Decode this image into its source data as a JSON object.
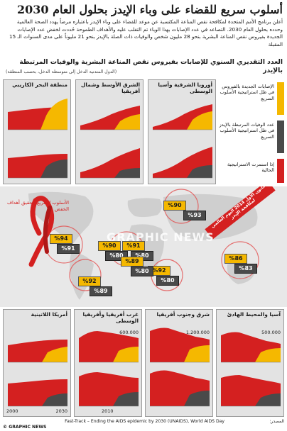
{
  "title": "أسلوب سريع للقضاء على وباء الإيدز بحلول العام 2030",
  "intro": "أعلن برنامج الأمم المتحدة لمكافحة نقص المناعة المكتسبة عن موعد للقضاء على وباء الإيدز باعتباره مرضاً يهدد الصحة العالمية وحدده بحلول العام 2030. التصاعد في عدد الإصابات بهذا الوباء تم التغلب عليه والأهداف الطموحة حُددت لخفض عدد الإصابات الجديدة بفيروس نقص المناعة البشرية بنحو 28 مليون شخص والوفيات ذات الصلة بالإيدز بنحو 21 مليوناً على مدى السنوات الـ 15 المقبلة",
  "subhead": "العدد التقديري السنوي للإصابات بفيروس نقص المناعة البشرية والوفيات المرتبطة بالإيدز",
  "subnote": "(الدول المتدنية الدخل إلى متوسطة الدخل، بحسب المنطقة)",
  "colors": {
    "fast": "#f5b800",
    "current": "#d42020",
    "deaths": "#4a4a4a",
    "panel": "#e3e3e3",
    "map": "#e8e8e8",
    "land": "#cfcfcf"
  },
  "legend": [
    {
      "label": "الإصابات الجديدة بالفيروس في ظل استراتيجية الأسلوب السريع",
      "color": "#f5b800"
    },
    {
      "label": "عدد الوفيات المرتبطة بالإيدز في ظل استراتيجية الأسلوب السريع",
      "color": "#4a4a4a"
    },
    {
      "label": "إذا استمرت الاستراتيجية الحالية",
      "color": "#d42020"
    }
  ],
  "callout": "الأسلوب السريع لتحقيق أهداف الخفض",
  "stamp": "1 كانون الأول 2014 اليوم العالمي لمكافحة الإيدز",
  "watermark": "GRAPHIC NEWS",
  "x_start": "2000",
  "x_end": "2030",
  "x_mid": "2010",
  "top_panels": [
    {
      "name": "منطقة البحر الكاريبي"
    },
    {
      "name": "الشرق الأوسط وشمال أفريقيا"
    },
    {
      "name": "أوروبا الشرقية وآسيا الوسطى"
    }
  ],
  "bottom_panels": [
    {
      "name": "أمريكا اللاتينية",
      "ymax": ""
    },
    {
      "name": "غرب أفريقيا وأفريقيا الوسطى",
      "ymax": "600.000"
    },
    {
      "name": "شرق وجنوب أفريقيا",
      "ymax": "1.200.000"
    },
    {
      "name": "آسيا والمحيط الهادئ",
      "ymax": "500.000"
    }
  ],
  "map_labels": [
    {
      "inf": "%94",
      "dth": "%91"
    },
    {
      "inf": "%90",
      "dth": "%93"
    },
    {
      "inf": "%90",
      "dth": "%80"
    },
    {
      "inf": "%91",
      "dth": "%80"
    },
    {
      "inf": "%86",
      "dth": "%83"
    },
    {
      "inf": "%92",
      "dth": "%89"
    },
    {
      "inf": "%92",
      "dth": "%80"
    },
    {
      "inf": "%89",
      "dth": "%80"
    }
  ],
  "footer": {
    "source_label": "المصدر:",
    "source_text": "Fast-Track – Ending the AIDS epidemic by 2030 (UNAIDS), World AIDS Day",
    "brand": "© GRAPHIC NEWS"
  }
}
